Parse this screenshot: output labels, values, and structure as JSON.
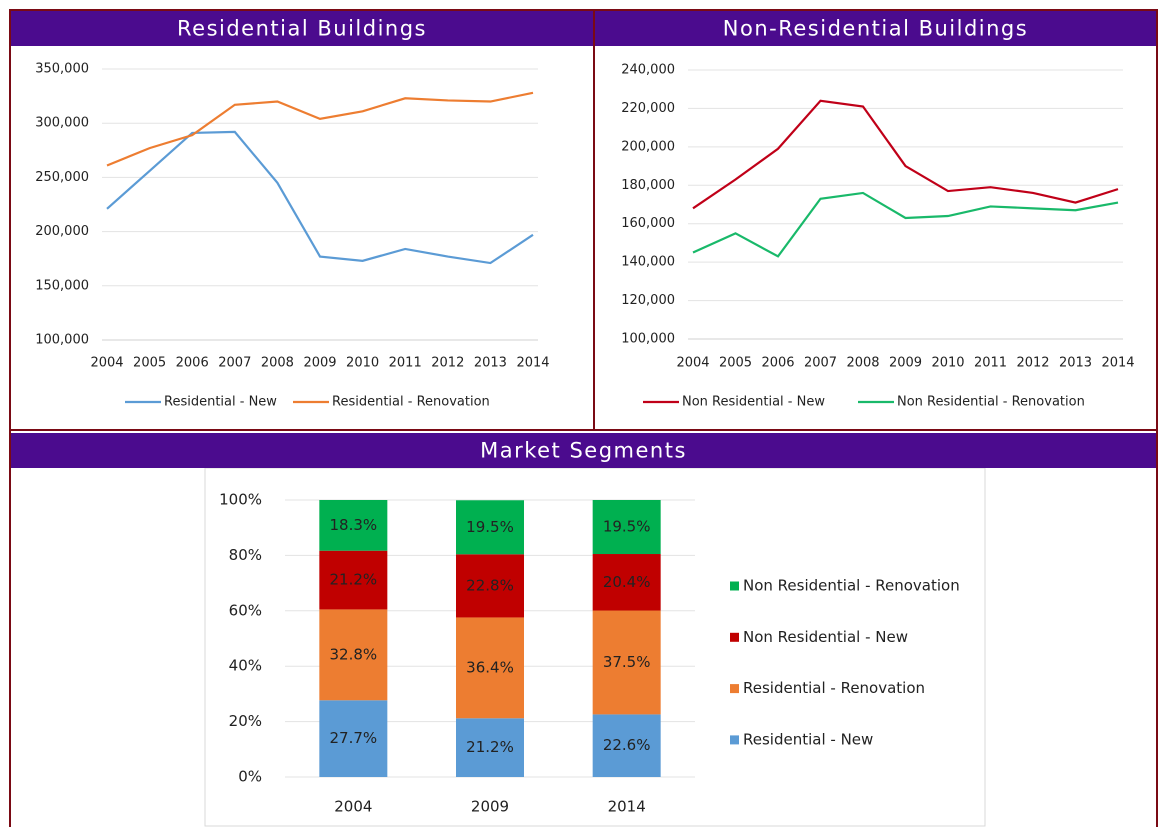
{
  "chart_data": [
    {
      "type": "line",
      "title": "Residential Buildings",
      "categories": [
        "2004",
        "2005",
        "2006",
        "2007",
        "2008",
        "2009",
        "2010",
        "2011",
        "2012",
        "2013",
        "2014"
      ],
      "series": [
        {
          "name": "Residential - New",
          "color": "#5b9bd5",
          "values": [
            221000,
            256000,
            291000,
            292000,
            245000,
            177000,
            173000,
            184000,
            177000,
            171000,
            197000
          ]
        },
        {
          "name": "Residential - Renovation",
          "color": "#ed7d31",
          "values": [
            261000,
            277000,
            289000,
            317000,
            320000,
            304000,
            311000,
            323000,
            321000,
            320000,
            328000
          ]
        }
      ],
      "ylim": [
        100000,
        350000
      ],
      "yticks": [
        {
          "value": 100000,
          "label": "100,000"
        },
        {
          "value": 150000,
          "label": "150,000"
        },
        {
          "value": 200000,
          "label": "200,000"
        },
        {
          "value": 250000,
          "label": "250,000"
        },
        {
          "value": 300000,
          "label": "300,000"
        },
        {
          "value": 350000,
          "label": "350,000"
        }
      ],
      "grid": true,
      "legend": "bottom"
    },
    {
      "type": "line",
      "title": "Non-Residential Buildings",
      "categories": [
        "2004",
        "2005",
        "2006",
        "2007",
        "2008",
        "2009",
        "2010",
        "2011",
        "2012",
        "2013",
        "2014"
      ],
      "series": [
        {
          "name": "Non Residential - New",
          "color": "#c00018",
          "values": [
            168000,
            183000,
            199000,
            224000,
            221000,
            190000,
            177000,
            179000,
            176000,
            171000,
            178000
          ]
        },
        {
          "name": "Non Residential - Renovation",
          "color": "#19b96a",
          "values": [
            145000,
            155000,
            143000,
            173000,
            176000,
            163000,
            164000,
            169000,
            168000,
            167000,
            171000
          ]
        }
      ],
      "ylim": [
        100000,
        240000
      ],
      "yticks": [
        {
          "value": 100000,
          "label": "100,000"
        },
        {
          "value": 120000,
          "label": "120,000"
        },
        {
          "value": 140000,
          "label": "140,000"
        },
        {
          "value": 160000,
          "label": "160,000"
        },
        {
          "value": 180000,
          "label": "180,000"
        },
        {
          "value": 200000,
          "label": "200,000"
        },
        {
          "value": 220000,
          "label": "220,000"
        },
        {
          "value": 240000,
          "label": "240,000"
        }
      ],
      "grid": true,
      "legend": "bottom"
    },
    {
      "type": "stacked-bar",
      "title": "Market Segments",
      "categories": [
        "2004",
        "2009",
        "2014"
      ],
      "series": [
        {
          "name": "Residential - New",
          "color": "#5b9bd5",
          "values": [
            27.7,
            21.2,
            22.6
          ],
          "value_labels": [
            "27.7%",
            "21.2%",
            "22.6%"
          ]
        },
        {
          "name": "Residential - Renovation",
          "color": "#ed7d31",
          "values": [
            32.8,
            36.4,
            37.5
          ],
          "value_labels": [
            "32.8%",
            "36.4%",
            "37.5%"
          ]
        },
        {
          "name": "Non Residential - New",
          "color": "#c00000",
          "values": [
            21.2,
            22.8,
            20.4
          ],
          "value_labels": [
            "21.2%",
            "22.8%",
            "20.4%"
          ]
        },
        {
          "name": "Non Residential - Renovation",
          "color": "#00b050",
          "values": [
            18.3,
            19.5,
            19.5
          ],
          "value_labels": [
            "18.3%",
            "19.5%",
            "19.5%"
          ]
        }
      ],
      "ylim": [
        0,
        100
      ],
      "yticks": [
        {
          "value": 0,
          "label": "0%"
        },
        {
          "value": 20,
          "label": "20%"
        },
        {
          "value": 40,
          "label": "40%"
        },
        {
          "value": 60,
          "label": "60%"
        },
        {
          "value": 80,
          "label": "80%"
        },
        {
          "value": 100,
          "label": "100%"
        }
      ],
      "grid": true,
      "legend": "right"
    }
  ]
}
